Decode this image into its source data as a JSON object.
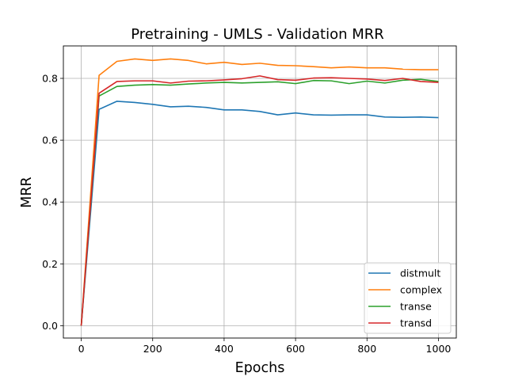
{
  "chart_data": {
    "type": "line",
    "title": "Pretraining - UMLS - Validation MRR",
    "xlabel": "Epochs",
    "ylabel": "MRR",
    "xlim": [
      -50,
      1050
    ],
    "ylim": [
      -0.04,
      0.905
    ],
    "xticks": [
      0,
      200,
      400,
      600,
      800,
      1000
    ],
    "yticks": [
      0.0,
      0.2,
      0.4,
      0.6,
      0.8
    ],
    "ytick_labels": [
      "0.0",
      "0.2",
      "0.4",
      "0.6",
      "0.8"
    ],
    "grid": true,
    "legend_position": "lower-right",
    "x": [
      0,
      50,
      100,
      150,
      200,
      250,
      300,
      350,
      400,
      450,
      500,
      550,
      600,
      650,
      700,
      750,
      800,
      850,
      900,
      950,
      1000
    ],
    "series": [
      {
        "name": "distmult",
        "color": "#1f77b4",
        "values": [
          0.0,
          0.7,
          0.726,
          0.722,
          0.716,
          0.708,
          0.71,
          0.706,
          0.698,
          0.698,
          0.693,
          0.682,
          0.688,
          0.682,
          0.681,
          0.682,
          0.682,
          0.675,
          0.674,
          0.675,
          0.673
        ]
      },
      {
        "name": "complex",
        "color": "#ff7f0e",
        "values": [
          0.0,
          0.81,
          0.855,
          0.863,
          0.858,
          0.863,
          0.858,
          0.847,
          0.852,
          0.845,
          0.849,
          0.842,
          0.841,
          0.838,
          0.834,
          0.837,
          0.834,
          0.834,
          0.83,
          0.828,
          0.828
        ]
      },
      {
        "name": "transe",
        "color": "#2ca02c",
        "values": [
          0.0,
          0.743,
          0.774,
          0.778,
          0.78,
          0.778,
          0.782,
          0.785,
          0.787,
          0.785,
          0.787,
          0.789,
          0.783,
          0.793,
          0.792,
          0.783,
          0.791,
          0.785,
          0.794,
          0.797,
          0.79
        ]
      },
      {
        "name": "transd",
        "color": "#d62728",
        "values": [
          0.0,
          0.752,
          0.79,
          0.792,
          0.792,
          0.785,
          0.791,
          0.792,
          0.795,
          0.799,
          0.808,
          0.796,
          0.794,
          0.801,
          0.802,
          0.8,
          0.798,
          0.793,
          0.8,
          0.79,
          0.787
        ]
      }
    ]
  }
}
